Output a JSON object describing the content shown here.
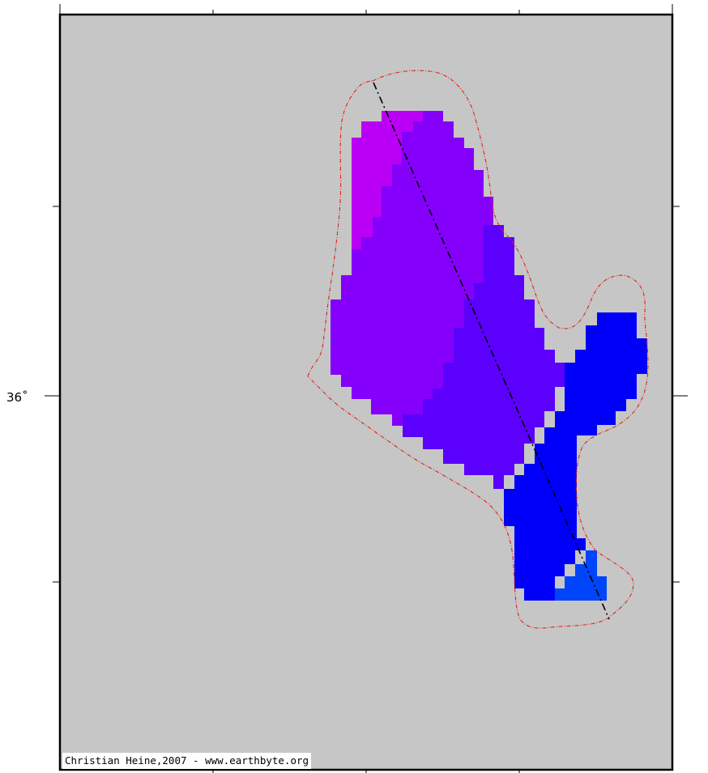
{
  "map": {
    "latitude_label": "36˚",
    "credit": "Christian Heine,2007 - www.earthbyte.org",
    "colors": {
      "background": "#c6c6c6",
      "frame": "#000000",
      "outline": "#e8221a",
      "track": "#000000",
      "regions": [
        "#b900f5",
        "#8a00f9",
        "#7a00fb",
        "#5b00fc",
        "#4300fe",
        "#0000fb",
        "#0044fb"
      ]
    }
  }
}
